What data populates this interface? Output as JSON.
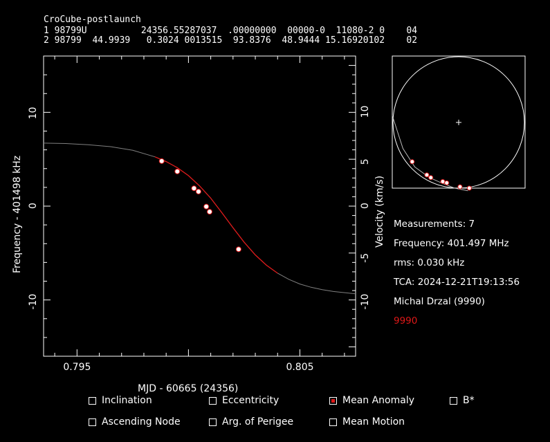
{
  "header": {
    "title": "CroCube-postlaunch",
    "tle_line1": "1 98799U          24356.55287037  .00000000  00000-0  11080-2 0    04",
    "tle_line2": "2 98799  44.9939   0.3024 0013515  93.8376  48.9444 15.16920102    02"
  },
  "chart_data": {
    "type": "line",
    "xlabel": "MJD - 60665 (24356)",
    "ylabel": "Frequency - 401498 kHz",
    "y2label": "Velocity (km/s)",
    "xlim": [
      0.7935,
      0.8075
    ],
    "ylim": [
      -16,
      16
    ],
    "y2lim": [
      -16,
      16
    ],
    "xticks": [
      0.795,
      0.8,
      0.805
    ],
    "xtick_labels": [
      "0.795",
      "",
      "0.805"
    ],
    "yticks": [
      -10,
      0,
      10
    ],
    "y2ticks": [
      -10,
      -5,
      0,
      5,
      10
    ],
    "series": [
      {
        "x": [
          0.7935,
          0.7945,
          0.7955,
          0.7965,
          0.7975,
          0.7985,
          0.799,
          0.7995,
          0.8,
          0.8005,
          0.801,
          0.8015,
          0.802,
          0.8025,
          0.803,
          0.8035,
          0.804,
          0.8045,
          0.805,
          0.8055,
          0.806,
          0.8065,
          0.8075
        ],
        "values": [
          6.72,
          6.67,
          6.55,
          6.34,
          5.95,
          5.25,
          4.75,
          4.1,
          3.25,
          2.15,
          0.85,
          -0.7,
          -2.3,
          -3.85,
          -5.2,
          -6.3,
          -7.15,
          -7.8,
          -8.3,
          -8.65,
          -8.9,
          -9.1,
          -9.35
        ]
      }
    ],
    "fit_range": [
      0.7985,
      0.804
    ],
    "measurements": {
      "x": [
        0.7988,
        0.7995,
        0.80025,
        0.80045,
        0.8008,
        0.80095,
        0.80225
      ],
      "values": [
        4.8,
        3.7,
        1.9,
        1.55,
        -0.05,
        -0.6,
        -4.6
      ]
    },
    "colors": {
      "model": "#808080",
      "fit": "#e01818",
      "points": "#e01818",
      "axes": "#ffffff"
    }
  },
  "skyplot": {
    "pass_track": [
      [
        0.0,
        0.55
      ],
      [
        0.08,
        0.3
      ],
      [
        0.17,
        0.16
      ],
      [
        0.28,
        0.08
      ],
      [
        0.37,
        0.04
      ],
      [
        0.47,
        0.0
      ],
      [
        0.57,
        -0.02
      ]
    ],
    "points": [
      [
        0.15,
        0.2
      ],
      [
        0.26,
        0.1
      ],
      [
        0.29,
        0.08
      ],
      [
        0.38,
        0.05
      ],
      [
        0.41,
        0.04
      ],
      [
        0.51,
        0.01
      ],
      [
        0.58,
        0.0
      ]
    ]
  },
  "info": {
    "measurements": "Measurements: 7",
    "frequency": "Frequency: 401.497 MHz",
    "rms": "rms: 0.030 kHz",
    "tca": "TCA: 2024-12-21T19:13:56",
    "observer": "Michal Drzal (9990)",
    "station_id": "9990",
    "station_color": "#e01818"
  },
  "options": {
    "inclination": {
      "label": "Inclination",
      "checked": false
    },
    "eccentricity": {
      "label": "Eccentricity",
      "checked": false
    },
    "mean_anomaly": {
      "label": "Mean Anomaly",
      "checked": true
    },
    "bstar": {
      "label": "B*",
      "checked": false
    },
    "ascending_node": {
      "label": "Ascending Node",
      "checked": false
    },
    "arg_perigee": {
      "label": "Arg. of Perigee",
      "checked": false
    },
    "mean_motion": {
      "label": "Mean Motion",
      "checked": false
    }
  }
}
